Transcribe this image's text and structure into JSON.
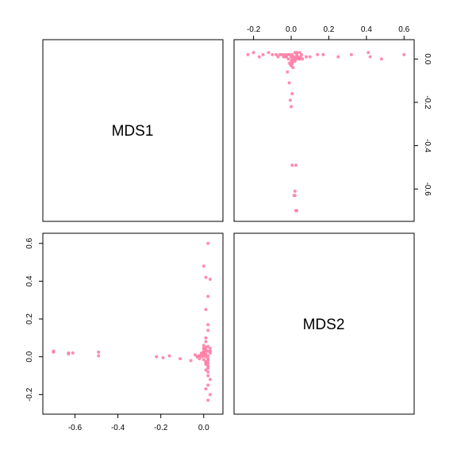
{
  "chart_data": {
    "type": "scatter",
    "title": "",
    "variables": [
      "MDS1",
      "MDS2"
    ],
    "color": "#ff7fa6",
    "axes": {
      "MDS1": {
        "range": [
          -0.72,
          0.06
        ],
        "ticks": [
          -0.6,
          -0.4,
          -0.2,
          0.0
        ],
        "tick_labels": [
          "-0.6",
          "-0.4",
          "-0.2",
          "0.0"
        ]
      },
      "MDS2": {
        "range": [
          -0.27,
          0.62
        ],
        "ticks": [
          -0.2,
          0.0,
          0.2,
          0.4,
          0.6
        ],
        "tick_labels": [
          "-0.2",
          "0.0",
          "0.2",
          "0.4",
          "0.6"
        ]
      }
    },
    "x": [
      -0.7,
      -0.7,
      -0.63,
      -0.63,
      -0.61,
      -0.49,
      -0.49,
      -0.22,
      -0.19,
      -0.16,
      -0.11,
      -0.06,
      -0.04,
      -0.03,
      -0.02,
      0.0,
      0.01,
      0.02,
      0.03,
      0.0,
      0.01,
      0.02,
      0.01,
      0.02,
      0.01,
      0.02,
      0.0,
      0.01,
      0.02,
      0.02,
      0.01,
      0.02,
      0.02,
      0.03,
      0.02,
      0.01,
      0.03,
      0.02,
      -0.01,
      -0.02,
      0.0,
      0.01,
      -0.01,
      0.0,
      0.01,
      0.02,
      0.03,
      -0.02,
      -0.03,
      0.0,
      0.01,
      0.02,
      0.03,
      -0.01,
      0.0,
      0.02,
      0.01,
      0.01,
      0.02,
      0.0,
      0.01,
      0.02,
      0.03,
      0.01,
      0.0,
      0.02
    ],
    "y": [
      0.025,
      0.03,
      0.02,
      0.015,
      0.02,
      0.025,
      0.005,
      0.0,
      -0.005,
      0.005,
      -0.01,
      -0.02,
      0.01,
      0.0,
      0.005,
      0.04,
      0.035,
      0.03,
      0.02,
      0.01,
      0.0,
      -0.01,
      -0.03,
      -0.05,
      -0.07,
      -0.1,
      0.02,
      0.015,
      0.005,
      -0.02,
      -0.04,
      -0.06,
      -0.08,
      -0.12,
      -0.15,
      -0.17,
      -0.2,
      -0.23,
      0.0,
      -0.01,
      0.025,
      0.03,
      0.015,
      0.045,
      0.05,
      0.055,
      0.045,
      0.005,
      0.0,
      -0.015,
      -0.025,
      -0.035,
      0.03,
      0.02,
      0.005,
      0.14,
      0.08,
      0.1,
      0.17,
      0.06,
      0.25,
      0.32,
      0.41,
      0.42,
      0.48,
      0.6
    ]
  }
}
